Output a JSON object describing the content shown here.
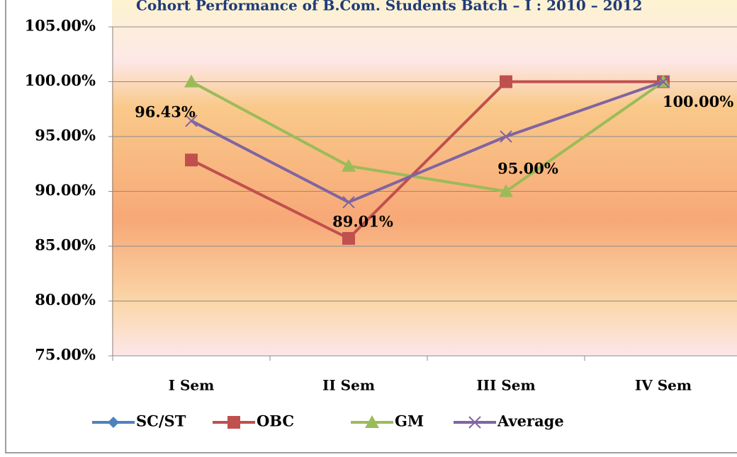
{
  "chart_data": {
    "type": "line",
    "title": "Cohort Performance  of  B.Com. Students Batch – I : 2010 – 2012",
    "categories": [
      "I Sem",
      "II Sem",
      "III Sem",
      "IV Sem"
    ],
    "series": [
      {
        "name": "SC/ST",
        "color": "#4f81bd",
        "marker": "diamond",
        "values": [
          null,
          null,
          null,
          null
        ]
      },
      {
        "name": "OBC",
        "color": "#c0504d",
        "marker": "square",
        "values": [
          92.86,
          85.71,
          100,
          100
        ]
      },
      {
        "name": "GM",
        "color": "#9bbb59",
        "marker": "triangle",
        "values": [
          100,
          92.31,
          90,
          100
        ]
      },
      {
        "name": "Average",
        "color": "#8064a2",
        "marker": "x",
        "values": [
          96.43,
          89.01,
          95,
          100
        ],
        "value_labels": [
          "96.43%",
          "89.01%",
          "95.00%",
          "100.00%"
        ]
      }
    ],
    "ylim": [
      75,
      105
    ],
    "yticks": [
      {
        "value": 75,
        "label": "75.00%"
      },
      {
        "value": 80,
        "label": "80.00%"
      },
      {
        "value": 85,
        "label": "85.00%"
      },
      {
        "value": 90,
        "label": "90.00%"
      },
      {
        "value": 95,
        "label": "95.00%"
      },
      {
        "value": 100,
        "label": "100.00%"
      },
      {
        "value": 105,
        "label": "105.00%"
      }
    ],
    "grid": true,
    "legend": "bottom"
  }
}
